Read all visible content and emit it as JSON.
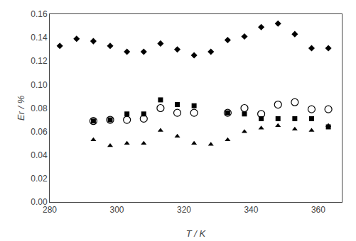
{
  "chart_data": {
    "type": "scatter",
    "xlabel": "T / K",
    "ylabel": "Er / %",
    "series": [
      {
        "marker": "diamond",
        "color": "black",
        "x": [
          283,
          288,
          293,
          298,
          303,
          308,
          313,
          318,
          323,
          328,
          333,
          338,
          343,
          348,
          353,
          358,
          363
        ],
        "values": [
          0.133,
          0.139,
          0.137,
          0.133,
          0.128,
          0.128,
          0.135,
          0.13,
          0.125,
          0.128,
          0.138,
          0.141,
          0.149,
          0.152,
          0.143,
          0.131,
          0.131
        ]
      },
      {
        "marker": "square",
        "color": "black",
        "x": [
          293,
          298,
          303,
          308,
          313,
          318,
          323,
          333,
          338,
          343,
          348,
          353,
          358,
          363
        ],
        "values": [
          0.069,
          0.07,
          0.075,
          0.075,
          0.087,
          0.083,
          0.082,
          0.076,
          0.075,
          0.071,
          0.071,
          0.071,
          0.071,
          0.064
        ]
      },
      {
        "marker": "circle-open",
        "color": "black",
        "x": [
          293,
          298,
          303,
          308,
          313,
          318,
          323,
          333,
          338,
          343,
          348,
          353,
          358,
          363
        ],
        "values": [
          0.069,
          0.07,
          0.07,
          0.071,
          0.08,
          0.076,
          0.076,
          0.076,
          0.08,
          0.075,
          0.083,
          0.085,
          0.079,
          0.079
        ]
      },
      {
        "marker": "triangle",
        "color": "black",
        "x": [
          293,
          298,
          303,
          308,
          313,
          318,
          323,
          328,
          333,
          338,
          343,
          348,
          353,
          358,
          363
        ],
        "values": [
          0.053,
          0.048,
          0.05,
          0.05,
          0.061,
          0.056,
          0.05,
          0.049,
          0.053,
          0.06,
          0.063,
          0.065,
          0.062,
          0.061,
          0.065
        ]
      }
    ],
    "xlim": [
      280,
      367
    ],
    "ylim": [
      0.0,
      0.16
    ],
    "xticks": [
      280,
      300,
      320,
      340,
      360
    ],
    "yticks": [
      {
        "value": 0.0,
        "label": "0.00"
      },
      0.02,
      0.04,
      0.06,
      0.08,
      {
        "value": 0.1,
        "label": "0.10"
      },
      0.12,
      0.14,
      0.16
    ],
    "grid": false
  }
}
